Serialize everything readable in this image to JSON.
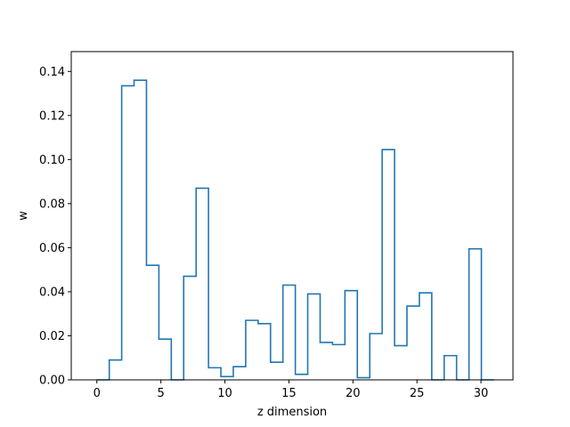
{
  "chart_data": {
    "type": "step",
    "xlabel": "z dimension",
    "ylabel": "w",
    "xlim": [
      -2.0,
      32.5
    ],
    "ylim": [
      0.0,
      0.149
    ],
    "x_ticks": [
      0,
      5,
      10,
      15,
      20,
      25,
      30
    ],
    "y_ticks": [
      0.0,
      0.02,
      0.04,
      0.06,
      0.08,
      0.1,
      0.12,
      0.14
    ],
    "y_tick_labels": [
      "0.00",
      "0.02",
      "0.04",
      "0.06",
      "0.08",
      "0.10",
      "0.12",
      "0.14"
    ],
    "grid": false,
    "series": [
      {
        "color": "#1f77b4",
        "x_start": 0,
        "x_end": 31,
        "values": [
          0.0,
          0.009,
          0.1335,
          0.136,
          0.052,
          0.0185,
          0.0,
          0.047,
          0.087,
          0.0055,
          0.0015,
          0.006,
          0.027,
          0.0255,
          0.008,
          0.043,
          0.0025,
          0.039,
          0.017,
          0.016,
          0.0405,
          0.001,
          0.021,
          0.1045,
          0.0155,
          0.0335,
          0.0395,
          0.0,
          0.011,
          0.0,
          0.0595,
          0.0
        ]
      }
    ]
  }
}
